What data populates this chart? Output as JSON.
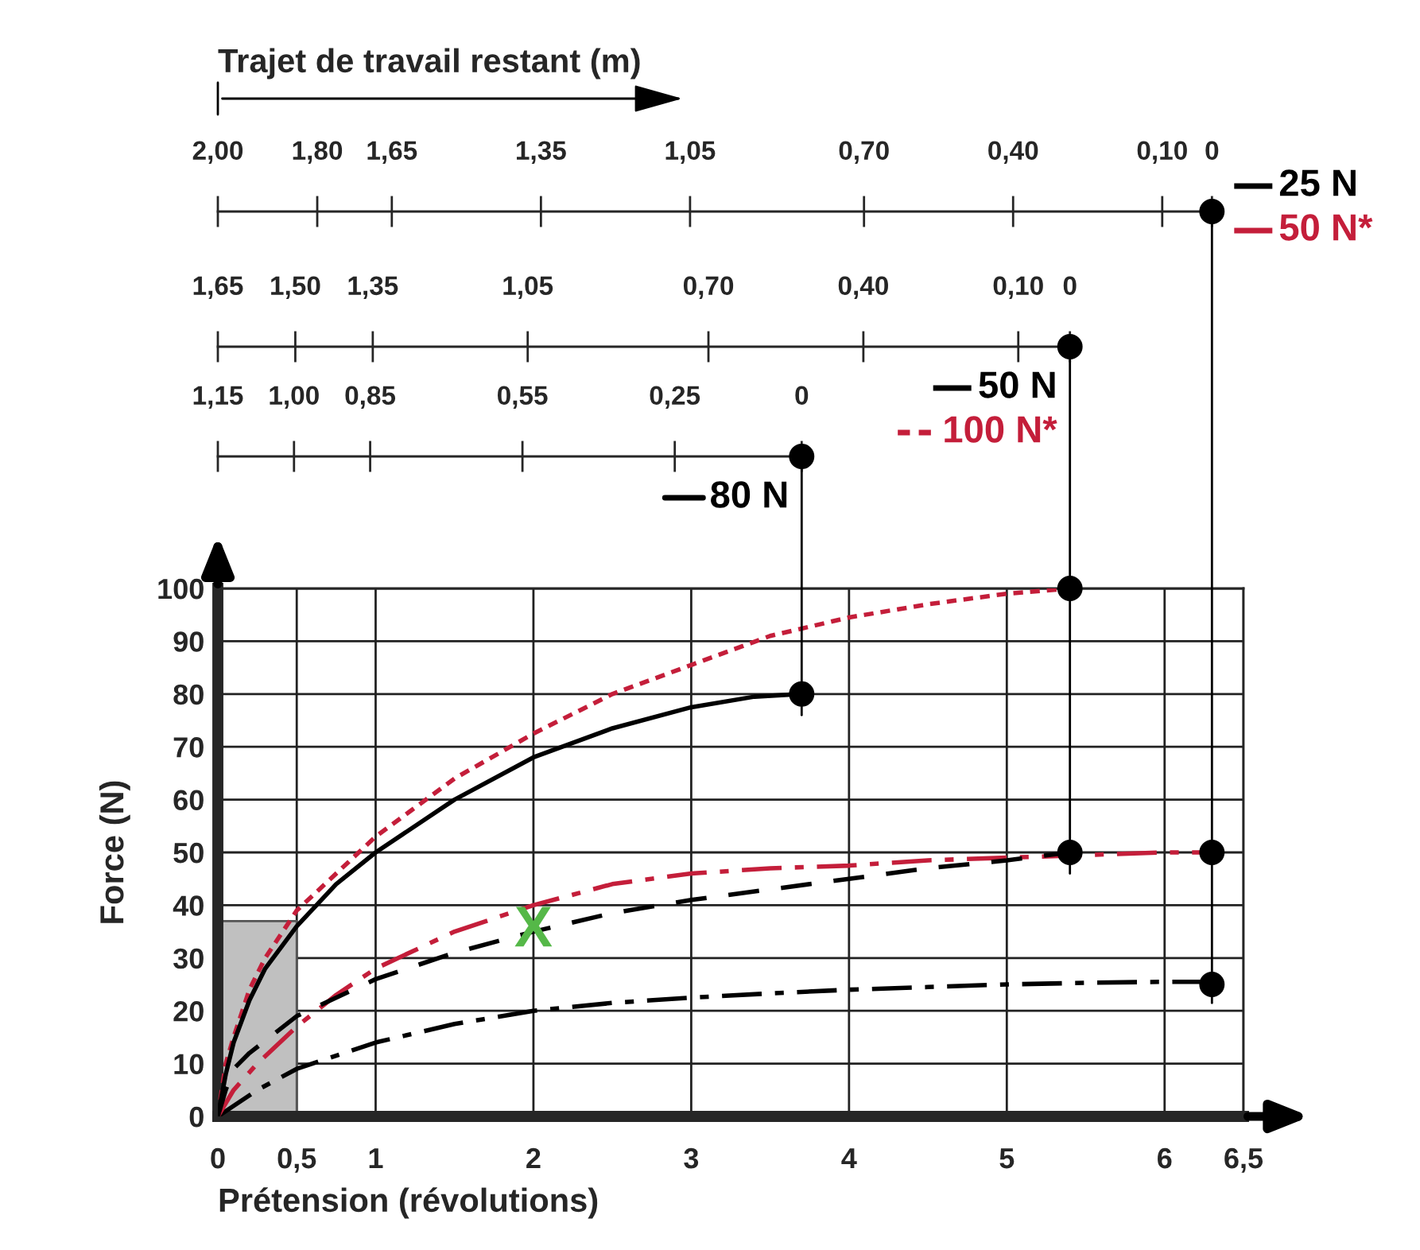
{
  "chart_data": [
    {
      "type": "other",
      "title": "Trajet de travail restant (m)",
      "values": [
        2.0,
        1.8,
        1.65,
        1.35,
        1.05,
        0.7,
        0.4,
        0.1,
        0
      ],
      "value_labels": [
        "2,00",
        "1,80",
        "1,65",
        "1,35",
        "1,05",
        "0,70",
        "0,40",
        "0,10",
        "0"
      ]
    },
    {
      "type": "other",
      "values": [
        1.65,
        1.5,
        1.35,
        1.05,
        0.7,
        0.4,
        0.1,
        0
      ],
      "value_labels": [
        "1,65",
        "1,50",
        "1,35",
        "1,05",
        "0,70",
        "0,40",
        "0,10",
        "0"
      ]
    },
    {
      "type": "other",
      "values": [
        1.15,
        1.0,
        0.85,
        0.55,
        0.25,
        0
      ],
      "value_labels": [
        "1,15",
        "1,00",
        "0,85",
        "0,55",
        "0,25",
        "0"
      ]
    },
    {
      "type": "line",
      "xlabel": "Prétension (révolutions)",
      "ylabel": "Force (N)",
      "xlim": [
        0,
        6.5
      ],
      "xticks": [
        0,
        {
          "value": 0.5,
          "label": "0,5"
        },
        1,
        2,
        3,
        4,
        5,
        6,
        {
          "value": 6.5,
          "label": "6,5"
        }
      ],
      "ylim": [
        0,
        100
      ],
      "yticks": [
        0,
        10,
        20,
        30,
        40,
        50,
        60,
        70,
        80,
        90,
        100
      ],
      "grid": true,
      "legend": "top right",
      "series": [
        {
          "type": "area",
          "color": "#c0c0c0",
          "x": [
            0,
            0.5
          ],
          "values": [
            37,
            37
          ]
        },
        {
          "name": "25 N",
          "color": "#000000",
          "line_style": "dashdot",
          "x": [
            0,
            0.1,
            0.25,
            0.5,
            1,
            1.5,
            2,
            2.5,
            3,
            3.5,
            4,
            4.5,
            5,
            5.5,
            6,
            6.3
          ],
          "values": [
            0,
            2,
            5,
            9,
            14,
            17.5,
            20,
            21.5,
            22.5,
            23.3,
            24,
            24.5,
            25,
            25.3,
            25.5,
            25.5
          ]
        },
        {
          "name": "50 N*",
          "color": "#c41e3a",
          "line_style": "dashdot",
          "x": [
            0,
            0.1,
            0.25,
            0.5,
            0.75,
            1,
            1.5,
            2,
            2.5,
            3,
            3.5,
            4,
            4.5,
            5,
            5.5,
            6,
            6.3
          ],
          "values": [
            0,
            5,
            10,
            17,
            23,
            28,
            35,
            40,
            44,
            46,
            47,
            47.5,
            48.5,
            49,
            49.5,
            50,
            50
          ]
        },
        {
          "name": "50 N",
          "color": "#000000",
          "line_style": "dashed",
          "x": [
            0,
            0.05,
            0.1,
            0.2,
            0.5,
            1,
            1.5,
            2,
            2.5,
            3,
            3.5,
            4,
            4.5,
            5,
            5.4
          ],
          "values": [
            0,
            5,
            9,
            12,
            19,
            26,
            31,
            35,
            38.5,
            41,
            43,
            45,
            47,
            48.5,
            50
          ]
        },
        {
          "name": "100 N*",
          "color": "#c41e3a",
          "line_style": "dotted",
          "x": [
            0,
            0.05,
            0.1,
            0.2,
            0.3,
            0.5,
            1,
            1.5,
            2,
            2.5,
            3,
            3.5,
            4,
            4.5,
            5,
            5.4
          ],
          "values": [
            0,
            10,
            15,
            24,
            30,
            39,
            53,
            64,
            72.5,
            80,
            85.5,
            91,
            94.5,
            97,
            99,
            100
          ]
        },
        {
          "name": "80 N",
          "color": "#000000",
          "line_style": "solid",
          "x": [
            0,
            0.05,
            0.1,
            0.2,
            0.3,
            0.5,
            0.75,
            1,
            1.5,
            2,
            2.5,
            3,
            3.4,
            3.7
          ],
          "values": [
            0,
            8,
            14,
            22,
            28,
            36,
            44,
            50,
            60,
            68,
            73.5,
            77.5,
            79.5,
            80
          ]
        },
        {
          "type": "scatter",
          "color": "#000000",
          "marker": "circle",
          "x": [
            3.7,
            5.4,
            5.4,
            6.3,
            6.3
          ],
          "values": [
            80,
            100,
            50,
            50,
            25
          ]
        }
      ],
      "ref_lines": [
        {
          "axis": "x",
          "value": 6.3,
          "color": "#000000"
        },
        {
          "axis": "x",
          "value": 5.4,
          "color": "#000000"
        },
        {
          "axis": "x",
          "value": 3.7,
          "color": "#000000"
        }
      ],
      "annotations": [
        {
          "text": "X",
          "x": 2,
          "y": 35
        }
      ]
    }
  ]
}
